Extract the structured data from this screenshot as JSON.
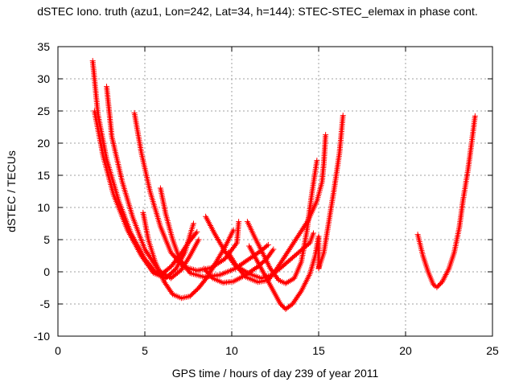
{
  "chart_data": {
    "type": "scatter",
    "title": "dSTEC Iono. truth (azu1, Lon=242, Lat=34, h=144): STEC-STEC_elemax in phase cont.",
    "xlabel": "GPS time / hours of day 239 of year 2011",
    "ylabel": "dSTEC  / TECUs",
    "xlim": [
      0,
      25
    ],
    "ylim": [
      -10,
      35
    ],
    "xticks": [
      0,
      5,
      10,
      15,
      20,
      25
    ],
    "yticks": [
      -10,
      -5,
      0,
      5,
      10,
      15,
      20,
      25,
      30,
      35
    ],
    "grid": true,
    "marker": "plus",
    "color": "#ff0000",
    "series": [
      {
        "points": [
          [
            2.0,
            32.8
          ],
          [
            2.3,
            24.5
          ],
          [
            2.8,
            17.5
          ],
          [
            3.5,
            11.0
          ],
          [
            4.2,
            6.0
          ],
          [
            5.0,
            2.0
          ],
          [
            5.6,
            0.0
          ],
          [
            6.0,
            -0.3
          ],
          [
            6.5,
            0.8
          ],
          [
            7.0,
            2.5
          ],
          [
            7.5,
            4.5
          ],
          [
            8.0,
            6.2
          ]
        ]
      },
      {
        "points": [
          [
            2.8,
            28.8
          ],
          [
            3.1,
            21.0
          ],
          [
            3.7,
            14.0
          ],
          [
            4.3,
            8.5
          ],
          [
            5.0,
            3.5
          ],
          [
            5.8,
            0.2
          ],
          [
            6.5,
            -1.0
          ],
          [
            7.1,
            0.3
          ],
          [
            7.6,
            2.5
          ],
          [
            8.1,
            5.0
          ]
        ]
      },
      {
        "points": [
          [
            2.1,
            25.0
          ],
          [
            2.6,
            18.0
          ],
          [
            3.2,
            12.0
          ],
          [
            4.0,
            6.5
          ],
          [
            4.8,
            2.5
          ],
          [
            5.5,
            -0.2
          ],
          [
            6.2,
            -1.0
          ],
          [
            6.8,
            0.5
          ],
          [
            7.3,
            3.0
          ],
          [
            7.8,
            7.5
          ]
        ]
      },
      {
        "points": [
          [
            4.4,
            24.7
          ],
          [
            4.8,
            18.5
          ],
          [
            5.3,
            12.5
          ],
          [
            5.9,
            7.0
          ],
          [
            6.5,
            3.0
          ],
          [
            7.2,
            0.8
          ],
          [
            8.0,
            0.2
          ],
          [
            8.8,
            0.6
          ],
          [
            9.6,
            2.0
          ],
          [
            10.3,
            4.5
          ],
          [
            10.4,
            7.8
          ]
        ]
      },
      {
        "points": [
          [
            4.9,
            9.2
          ],
          [
            5.2,
            5.0
          ],
          [
            5.6,
            1.5
          ],
          [
            6.1,
            -1.5
          ],
          [
            6.6,
            -3.5
          ],
          [
            7.1,
            -4.1
          ],
          [
            7.6,
            -3.8
          ],
          [
            8.1,
            -2.5
          ],
          [
            8.6,
            -0.8
          ],
          [
            9.1,
            1.5
          ],
          [
            9.6,
            3.8
          ],
          [
            10.1,
            6.5
          ]
        ]
      },
      {
        "points": [
          [
            5.9,
            13.0
          ],
          [
            6.2,
            9.0
          ],
          [
            6.6,
            5.0
          ],
          [
            7.0,
            2.0
          ],
          [
            7.6,
            -0.2
          ],
          [
            8.4,
            -0.8
          ],
          [
            9.3,
            -0.5
          ],
          [
            10.2,
            0.5
          ],
          [
            11.0,
            2.0
          ],
          [
            11.7,
            3.3
          ],
          [
            12.1,
            4.2
          ]
        ]
      },
      {
        "points": [
          [
            8.5,
            8.6
          ],
          [
            9.0,
            6.0
          ],
          [
            9.6,
            3.2
          ],
          [
            10.2,
            1.0
          ],
          [
            11.0,
            -0.3
          ],
          [
            11.7,
            -1.0
          ],
          [
            12.3,
            -0.5
          ],
          [
            12.9,
            0.8
          ],
          [
            13.5,
            2.2
          ],
          [
            14.1,
            3.6
          ],
          [
            14.5,
            4.5
          ],
          [
            14.7,
            6.0
          ]
        ]
      },
      {
        "points": [
          [
            10.9,
            7.8
          ],
          [
            11.3,
            5.5
          ],
          [
            11.8,
            2.8
          ],
          [
            12.2,
            0.6
          ],
          [
            12.7,
            -1.3
          ],
          [
            13.1,
            -1.8
          ],
          [
            13.6,
            -1.0
          ],
          [
            14.0,
            1.5
          ],
          [
            14.3,
            6.0
          ],
          [
            14.6,
            12.0
          ],
          [
            14.9,
            17.3
          ]
        ]
      },
      {
        "points": [
          [
            9.8,
            3.0
          ],
          [
            10.3,
            0.8
          ],
          [
            10.8,
            -0.8
          ],
          [
            11.5,
            -1.6
          ],
          [
            12.1,
            -1.3
          ],
          [
            12.6,
            0.5
          ],
          [
            13.2,
            3.0
          ],
          [
            13.8,
            5.5
          ],
          [
            14.4,
            8.0
          ],
          [
            14.9,
            11.0
          ],
          [
            15.2,
            14.0
          ],
          [
            15.3,
            17.0
          ],
          [
            15.4,
            21.3
          ]
        ]
      },
      {
        "points": [
          [
            8.4,
            0.5
          ],
          [
            8.9,
            -1.0
          ],
          [
            9.5,
            -1.7
          ],
          [
            10.1,
            -1.5
          ],
          [
            10.8,
            -0.5
          ],
          [
            11.5,
            0.8
          ],
          [
            12.0,
            2.0
          ],
          [
            12.4,
            3.5
          ]
        ]
      },
      {
        "points": [
          [
            11.0,
            4.0
          ],
          [
            11.4,
            2.0
          ],
          [
            11.9,
            -0.5
          ],
          [
            12.4,
            -3.0
          ],
          [
            12.8,
            -5.0
          ],
          [
            13.1,
            -5.8
          ],
          [
            13.5,
            -5.0
          ],
          [
            14.0,
            -3.0
          ],
          [
            14.5,
            -0.3
          ],
          [
            14.8,
            2.5
          ],
          [
            15.0,
            5.5
          ],
          [
            15.0,
            0.6
          ]
        ]
      },
      {
        "points": [
          [
            15.0,
            0.5
          ],
          [
            15.3,
            3.0
          ],
          [
            15.6,
            8.0
          ],
          [
            15.9,
            13.0
          ],
          [
            16.2,
            18.5
          ],
          [
            16.4,
            24.3
          ]
        ]
      },
      {
        "points": [
          [
            20.7,
            5.8
          ],
          [
            21.0,
            2.5
          ],
          [
            21.3,
            0.0
          ],
          [
            21.6,
            -2.0
          ],
          [
            21.8,
            -2.4
          ],
          [
            22.1,
            -1.6
          ],
          [
            22.5,
            0.5
          ],
          [
            22.8,
            3.0
          ],
          [
            23.1,
            7.0
          ],
          [
            23.3,
            11.0
          ],
          [
            23.6,
            16.0
          ],
          [
            23.8,
            20.0
          ],
          [
            24.0,
            24.2
          ]
        ]
      }
    ]
  }
}
